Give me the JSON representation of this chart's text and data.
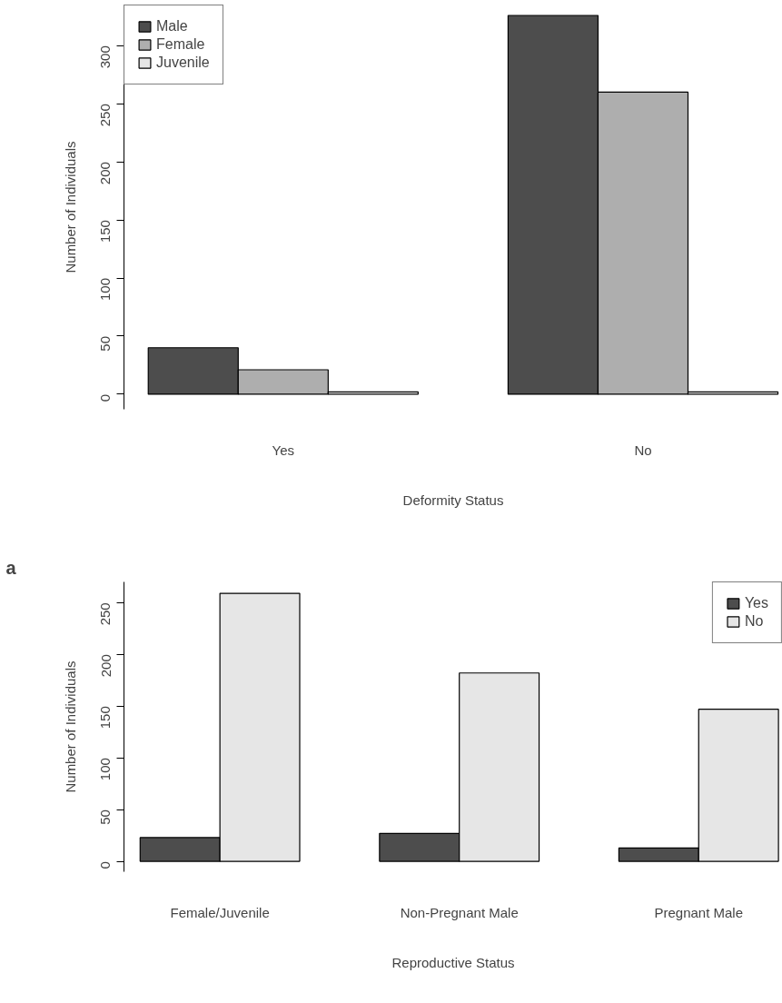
{
  "chart_data": [
    {
      "type": "bar",
      "categories": [
        "Yes",
        "No"
      ],
      "xlabel": "Deformity Status",
      "ylabel": "Number of Individuals",
      "ylim": [
        -13,
        335
      ],
      "yticks": [
        0,
        50,
        100,
        150,
        200,
        250,
        300
      ],
      "legend": "top left",
      "grid": false,
      "series": [
        {
          "name": "Male",
          "color": "#4d4d4d",
          "values": [
            40,
            326
          ]
        },
        {
          "name": "Female",
          "color": "#aeaeae",
          "values": [
            21,
            260
          ]
        },
        {
          "name": "Juvenile",
          "color": "#e6e6e6",
          "values": [
            2,
            2
          ]
        }
      ]
    },
    {
      "type": "bar",
      "categories": [
        "Female/Juvenile",
        "Non-Pregnant Male",
        "Pregnant Male"
      ],
      "xlabel": "Reproductive Status",
      "ylabel": "Number of Individuals",
      "ylim": [
        -10,
        270
      ],
      "yticks": [
        0,
        50,
        100,
        150,
        200,
        250
      ],
      "legend": "top right",
      "grid": false,
      "annotations": [
        "a"
      ],
      "series": [
        {
          "name": "Yes",
          "color": "#4d4d4d",
          "values": [
            23,
            27,
            13
          ]
        },
        {
          "name": "No",
          "color": "#e6e6e6",
          "values": [
            259,
            182,
            147
          ]
        }
      ]
    }
  ]
}
